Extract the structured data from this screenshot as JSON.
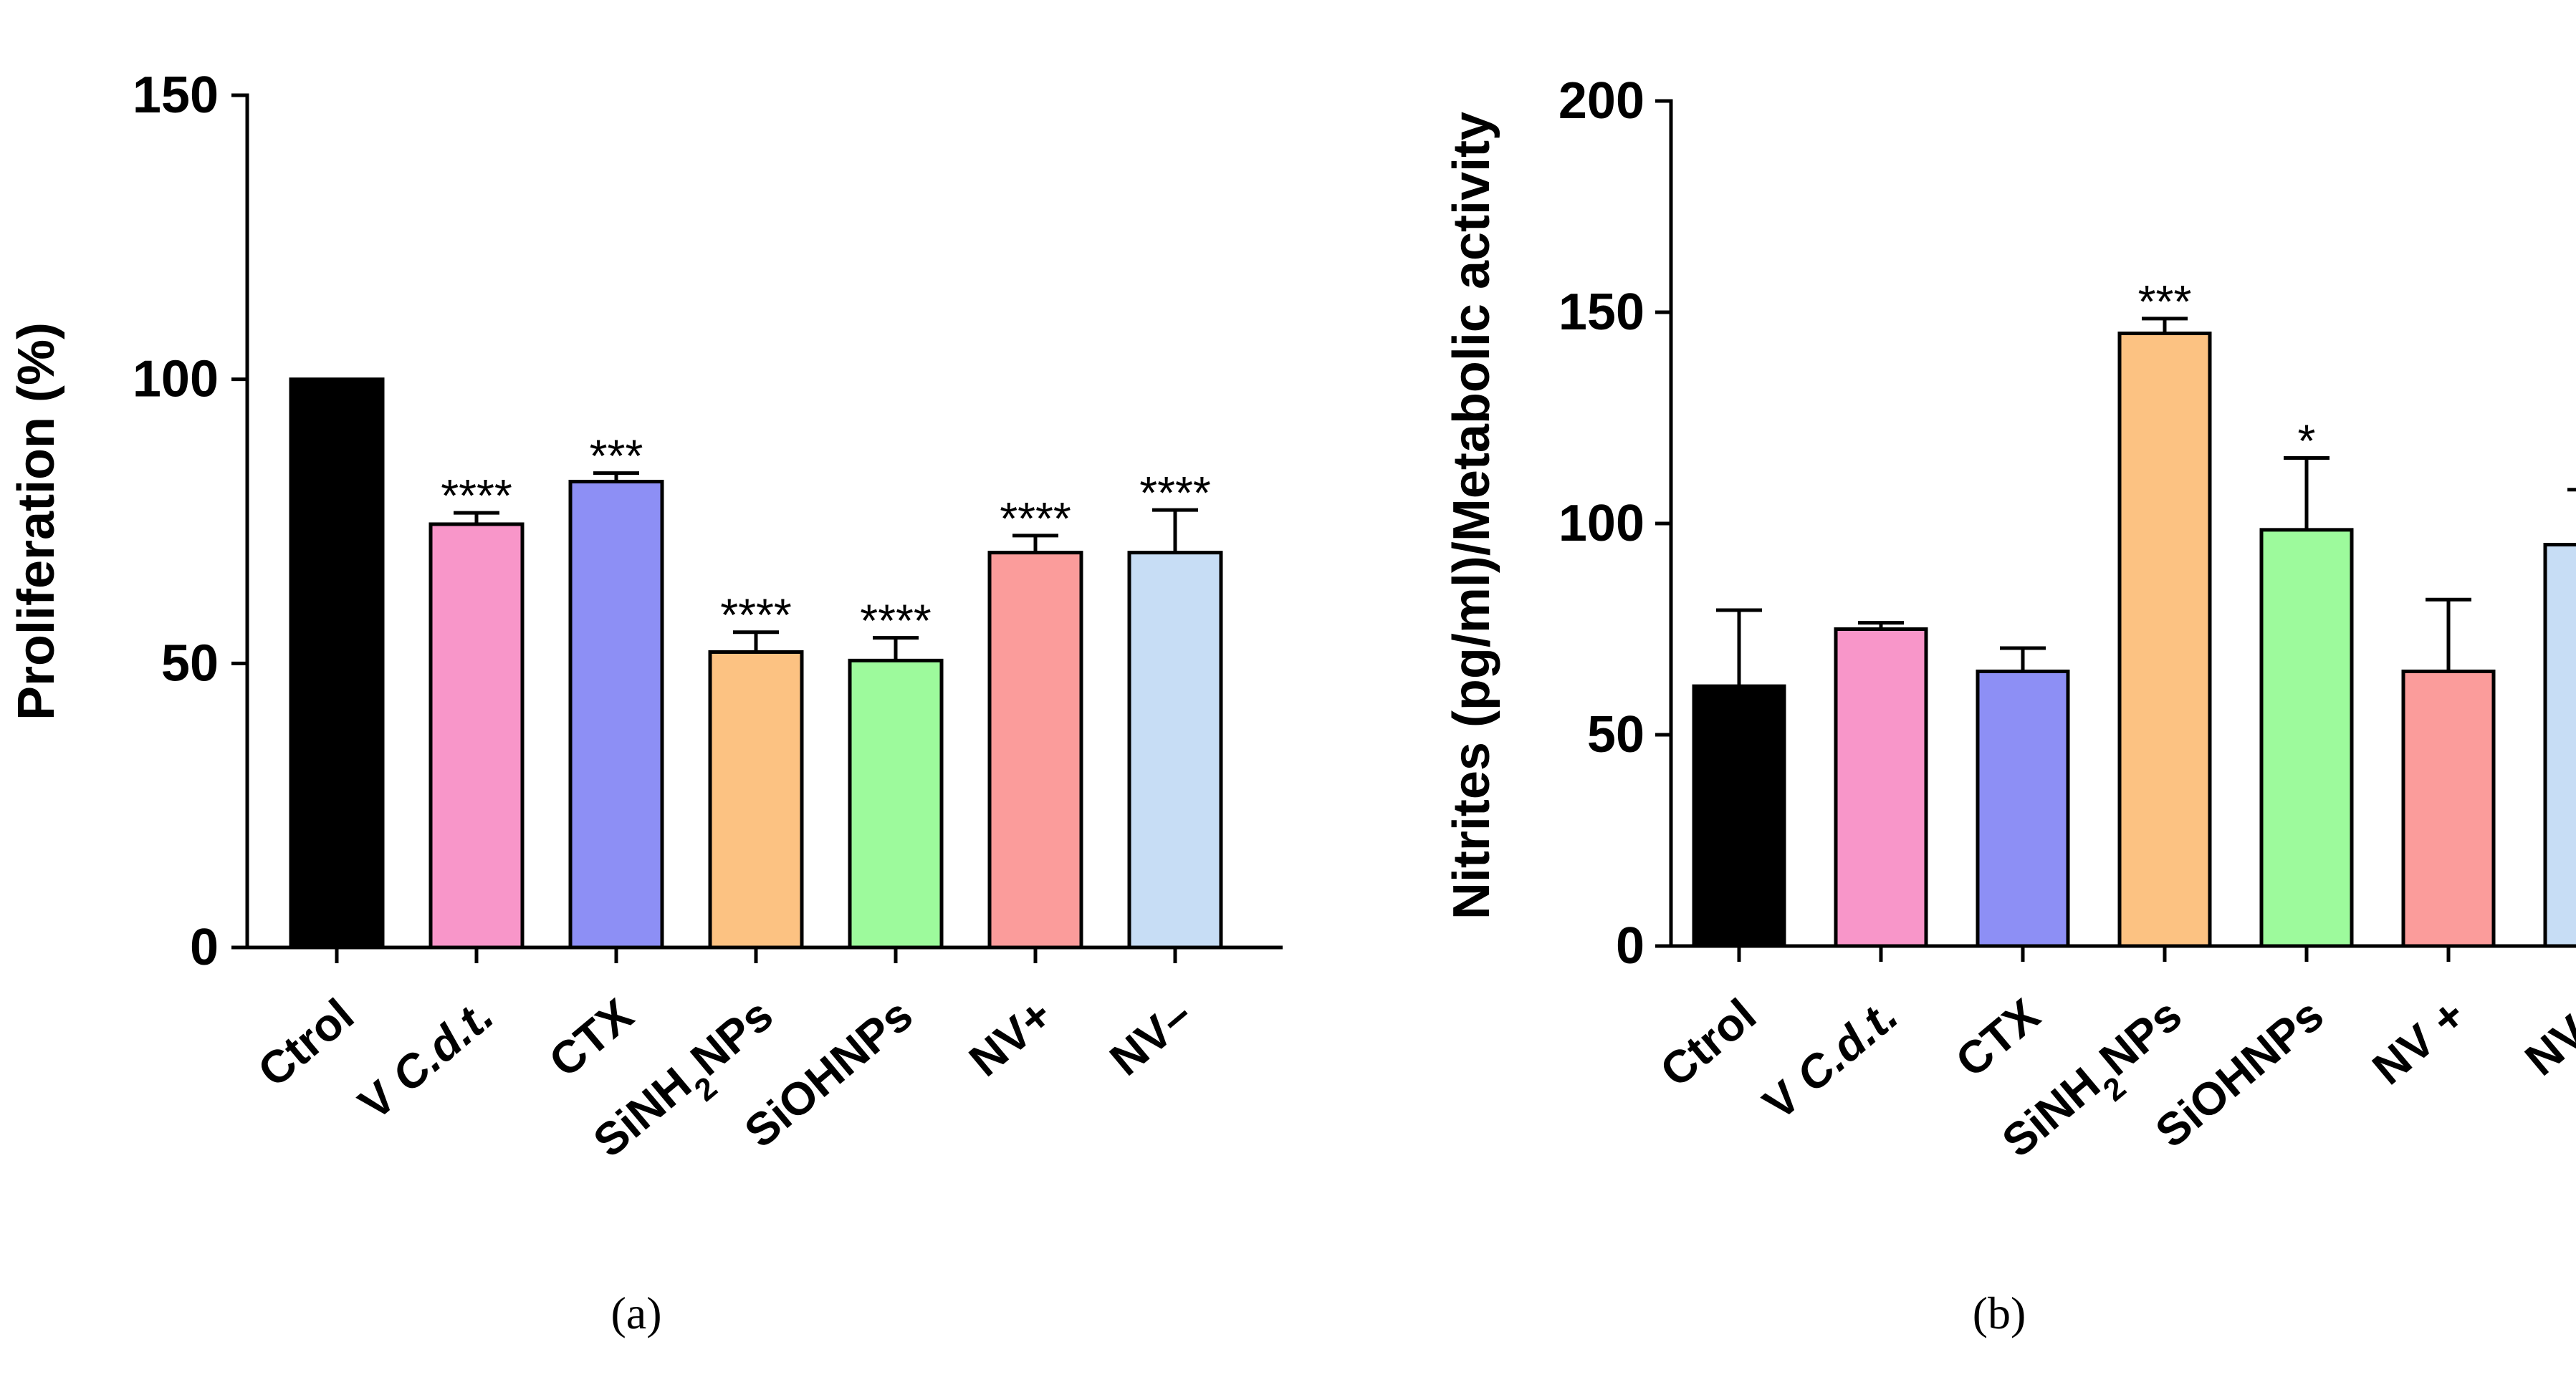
{
  "chart_data": [
    {
      "type": "bar",
      "panel_label": "(a)",
      "ylabel": "Proliferation (%)",
      "xlabel": "",
      "ylim": [
        0,
        150
      ],
      "yticks": [
        0,
        50,
        100,
        150
      ],
      "categories": [
        {
          "main": "Ctrol"
        },
        {
          "main": "V ",
          "italic": "C.d.t."
        },
        {
          "main": "CTX"
        },
        {
          "main": "SiNH",
          "sub": "2",
          "tail": "NPs"
        },
        {
          "main": "SiOHNPs"
        },
        {
          "main": "NV+"
        },
        {
          "main": "NV–"
        }
      ],
      "values": [
        100,
        74.5,
        82,
        52,
        50.5,
        69.5,
        69.5
      ],
      "errors": [
        0,
        2,
        1.5,
        3.5,
        4,
        3,
        7.5
      ],
      "significance": [
        "",
        "****",
        "***",
        "****",
        "****",
        "****",
        "****"
      ],
      "colors": [
        "#000000",
        "#f896c9",
        "#8d8ff5",
        "#fcc282",
        "#9dfa9c",
        "#fb9c9b",
        "#c7ddf5"
      ]
    },
    {
      "type": "bar",
      "panel_label": "(b)",
      "ylabel": "Nitrites (pg/ml)/Metabolic activity",
      "xlabel": "",
      "ylim": [
        0,
        200
      ],
      "yticks": [
        0,
        50,
        100,
        150,
        200
      ],
      "categories": [
        {
          "main": "Ctrol"
        },
        {
          "main": "V ",
          "italic": "C.d.t."
        },
        {
          "main": "CTX"
        },
        {
          "main": "SiNH",
          "sub": "2",
          "tail": "NPs"
        },
        {
          "main": "SiOHNPs"
        },
        {
          "main": "NV +"
        },
        {
          "main": "NV–"
        }
      ],
      "values": [
        61.5,
        75,
        65,
        145,
        98.5,
        65,
        95
      ],
      "errors": [
        18,
        1.5,
        5.5,
        3.5,
        17,
        17,
        13
      ],
      "significance": [
        "",
        "",
        "",
        "***",
        "*",
        "",
        ""
      ],
      "colors": [
        "#000000",
        "#f896c9",
        "#8d8ff5",
        "#fcc282",
        "#9dfa9c",
        "#fb9c9b",
        "#c7ddf5"
      ]
    }
  ]
}
